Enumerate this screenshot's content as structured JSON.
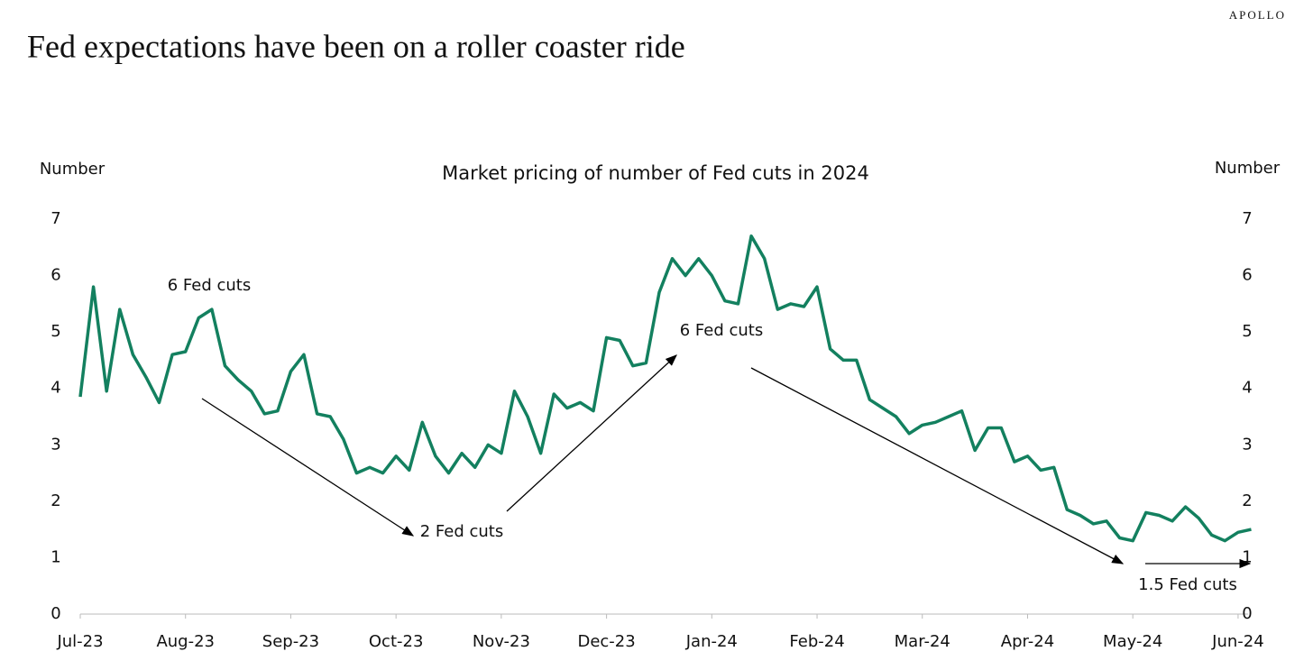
{
  "brand": "APOLLO",
  "chart_data": {
    "type": "line",
    "title": "Fed expectations have been on a roller coaster ride",
    "subtitle": "Market pricing of number of Fed cuts in 2024",
    "ylabel": "Number",
    "y2label": "Number",
    "categories": [
      "Jul-23",
      null,
      null,
      null,
      null,
      null,
      null,
      null,
      "Aug-23",
      null,
      null,
      null,
      null,
      null,
      null,
      null,
      "Sep-23",
      null,
      null,
      null,
      null,
      null,
      null,
      null,
      "Oct-23",
      null,
      null,
      null,
      null,
      null,
      null,
      null,
      "Nov-23",
      null,
      null,
      null,
      null,
      null,
      null,
      null,
      "Dec-23",
      null,
      null,
      null,
      null,
      null,
      null,
      null,
      "Jan-24",
      null,
      null,
      null,
      null,
      null,
      null,
      null,
      "Feb-24",
      null,
      null,
      null,
      null,
      null,
      null,
      null,
      "Mar-24",
      null,
      null,
      null,
      null,
      null,
      null,
      null,
      "Apr-24",
      null,
      null,
      null,
      null,
      null,
      null,
      null,
      "May-24",
      null,
      null,
      null,
      null,
      null,
      null,
      null,
      "Jun-24",
      null
    ],
    "values": [
      3.85,
      5.8,
      3.95,
      5.4,
      4.6,
      4.2,
      3.75,
      4.6,
      4.65,
      5.25,
      5.4,
      4.4,
      4.15,
      3.95,
      3.55,
      3.6,
      4.3,
      4.6,
      3.55,
      3.5,
      3.1,
      2.5,
      2.6,
      2.5,
      2.8,
      2.55,
      3.4,
      2.8,
      2.5,
      2.85,
      2.6,
      3.0,
      2.85,
      3.95,
      3.5,
      2.85,
      3.9,
      3.65,
      3.75,
      3.6,
      4.9,
      4.85,
      4.4,
      4.45,
      5.7,
      6.3,
      6.0,
      6.3,
      6.0,
      5.55,
      5.5,
      6.7,
      6.3,
      5.4,
      5.5,
      5.45,
      5.8,
      4.7,
      4.5,
      4.5,
      3.8,
      3.65,
      3.5,
      3.2,
      3.35,
      3.4,
      3.5,
      3.6,
      2.9,
      3.3,
      3.3,
      2.7,
      2.8,
      2.55,
      2.6,
      1.85,
      1.75,
      1.6,
      1.65,
      1.35,
      1.3,
      1.8,
      1.75,
      1.65,
      1.9,
      1.7,
      1.4,
      1.3,
      1.45,
      1.5
    ],
    "color": "#13805f",
    "ylim": [
      0,
      7
    ],
    "yticks": [
      0,
      1,
      2,
      3,
      4,
      5,
      6,
      7
    ],
    "y2lim": [
      0,
      7
    ],
    "y2ticks": [
      0,
      1,
      2,
      3,
      4,
      5,
      6,
      7
    ],
    "annotations": [
      "6 Fed cuts",
      "2 Fed cuts",
      "6 Fed cuts",
      "1.5 Fed cuts"
    ]
  }
}
